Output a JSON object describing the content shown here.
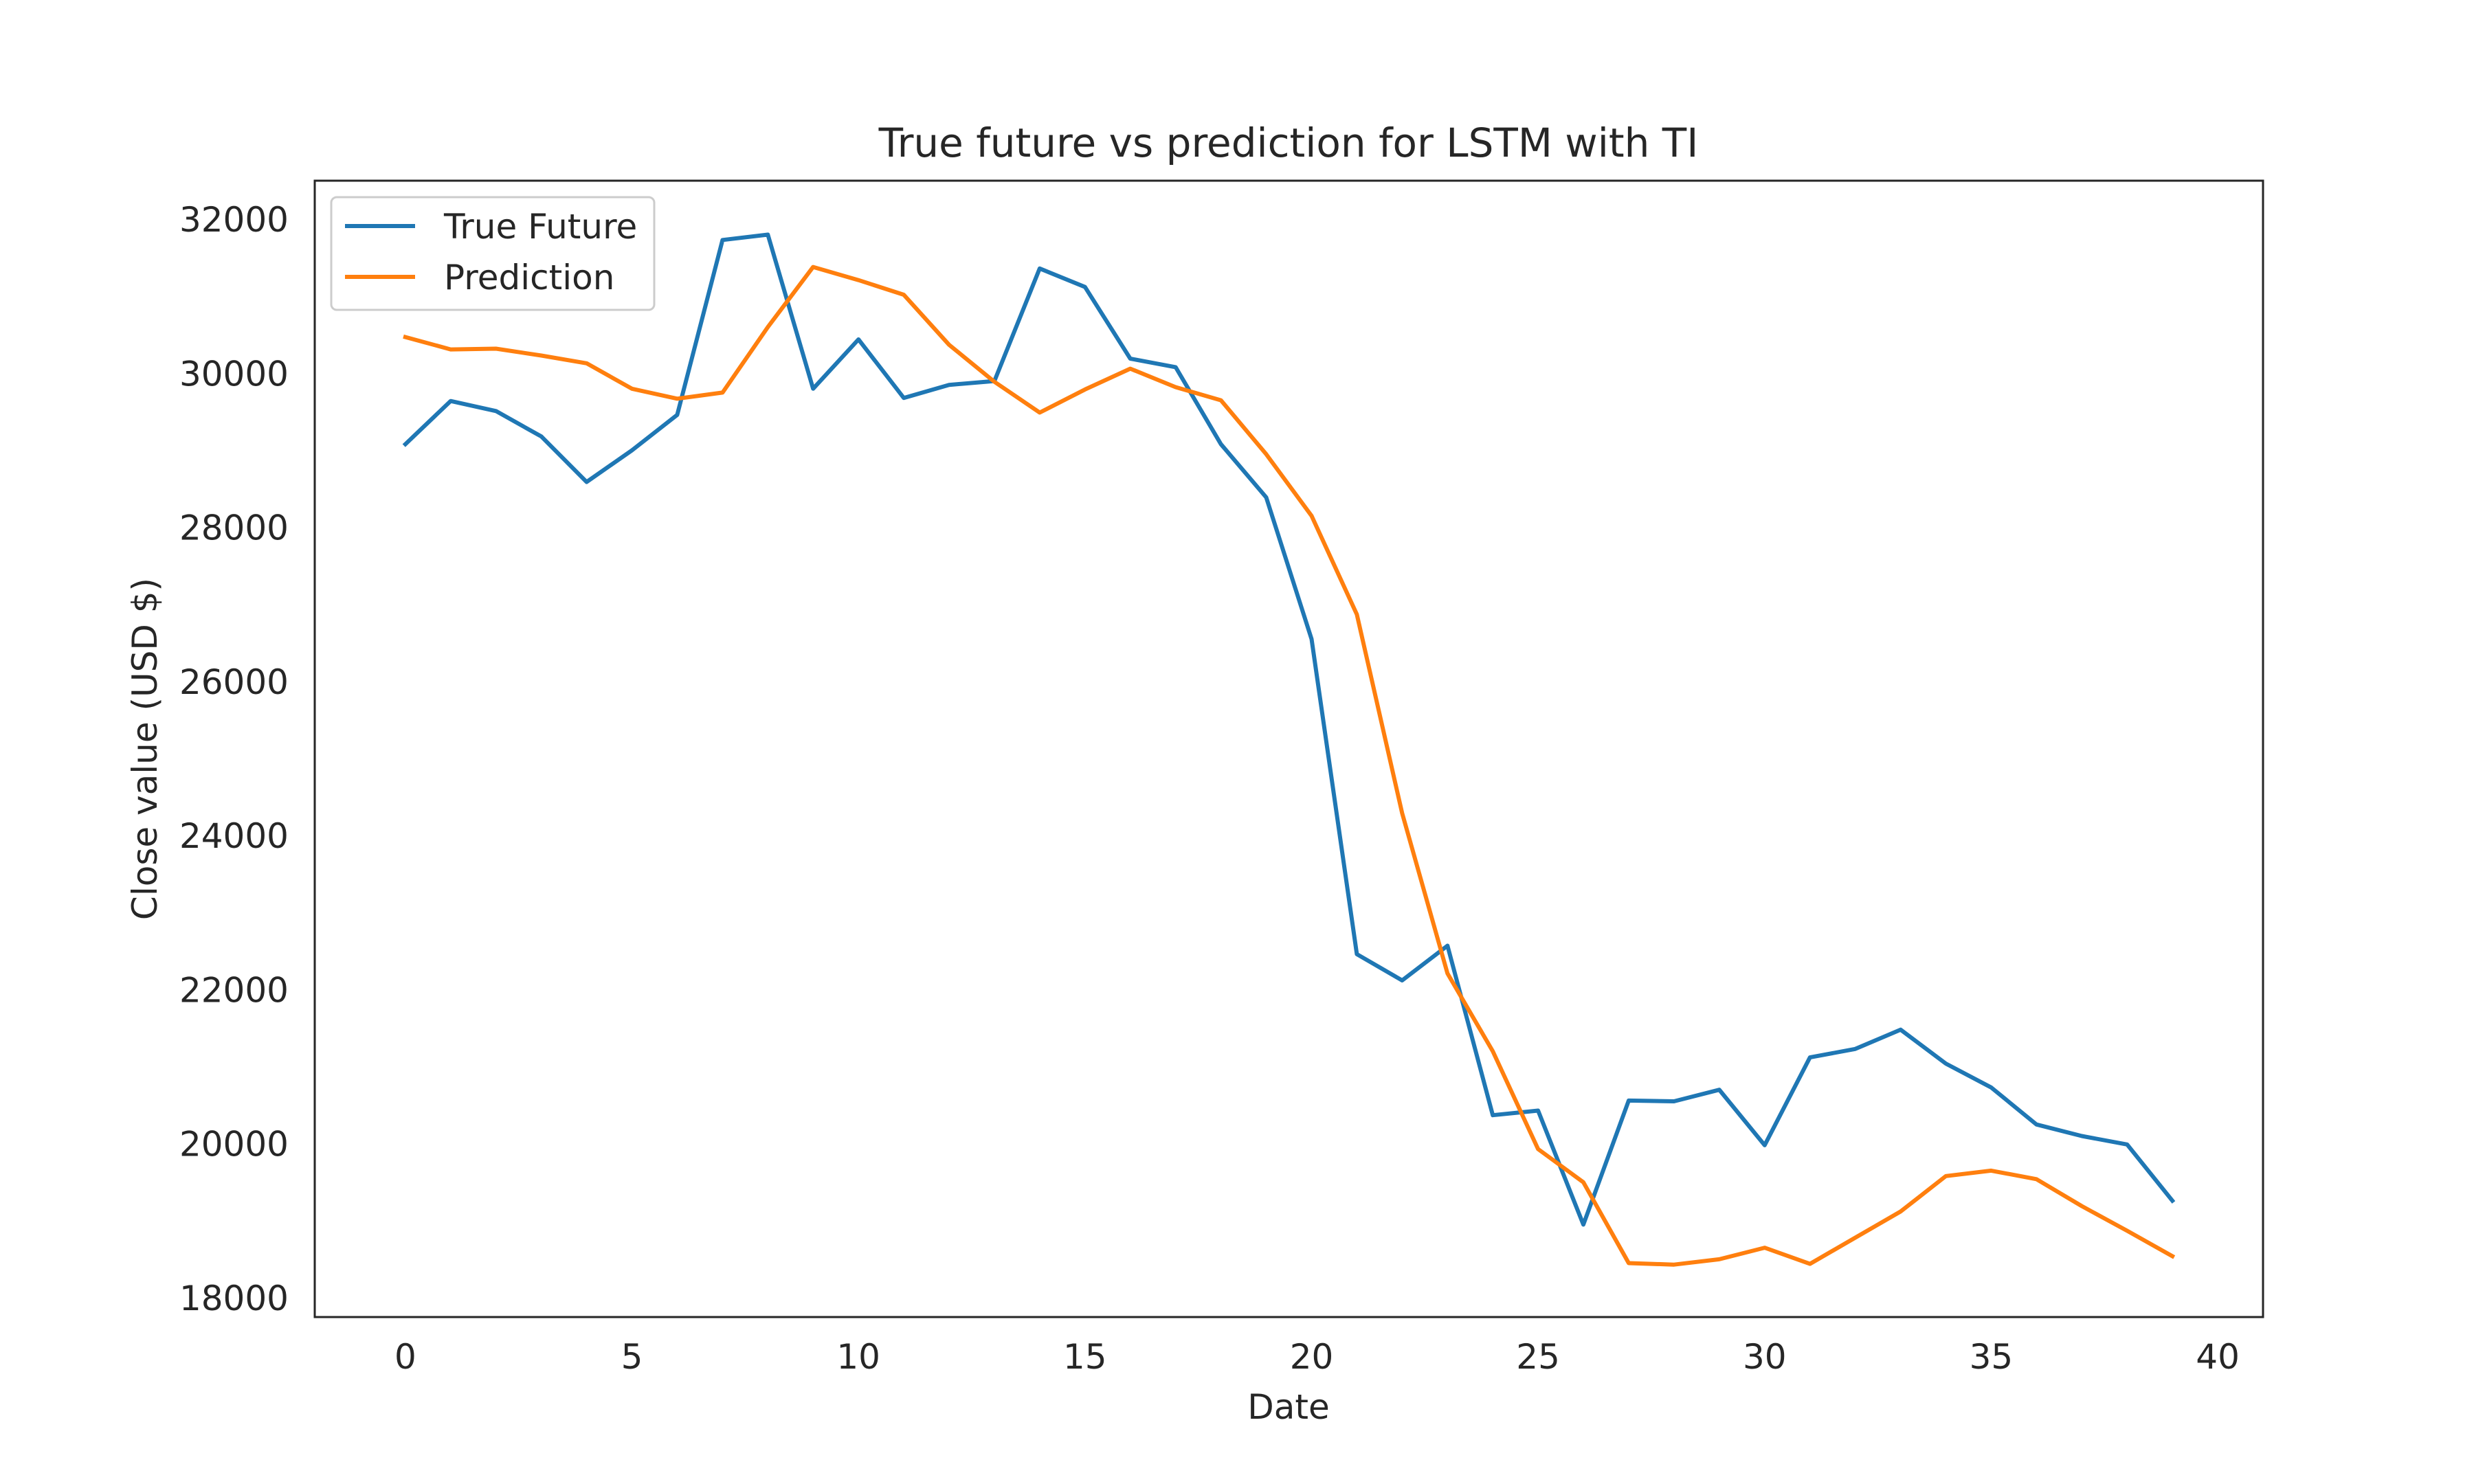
{
  "chart_data": {
    "type": "line",
    "title": "True future vs prediction for LSTM with TI",
    "xlabel": "Date",
    "ylabel": "Close value (USD $)",
    "xlim": [
      -2,
      41
    ],
    "ylim": [
      17750,
      32500
    ],
    "xticks": [
      0,
      5,
      10,
      15,
      20,
      25,
      30,
      35,
      40
    ],
    "yticks": [
      18000,
      20000,
      22000,
      24000,
      26000,
      28000,
      30000,
      32000
    ],
    "grid": false,
    "legend": "top-left",
    "x": [
      0,
      1,
      2,
      3,
      4,
      5,
      6,
      7,
      8,
      9,
      10,
      11,
      12,
      13,
      14,
      15,
      16,
      17,
      18,
      19,
      20,
      21,
      22,
      23,
      24,
      25,
      26,
      27,
      28,
      29,
      30,
      31,
      32,
      33,
      34,
      35,
      36,
      37,
      38,
      39
    ],
    "series": [
      {
        "name": "True Future",
        "color": "#1f77b4",
        "values": [
          29080,
          29640,
          29510,
          29180,
          28590,
          29000,
          29460,
          31730,
          31800,
          29800,
          30440,
          29680,
          29850,
          29900,
          31360,
          31120,
          30190,
          30080,
          29080,
          28390,
          26550,
          22460,
          22120,
          22570,
          20370,
          20430,
          18950,
          20560,
          20550,
          20700,
          19980,
          21120,
          21230,
          21480,
          21040,
          20730,
          20250,
          20100,
          19990,
          19260
        ]
      },
      {
        "name": "Prediction",
        "color": "#ff7f0e",
        "values": [
          30470,
          30310,
          30320,
          30230,
          30130,
          29800,
          29670,
          29750,
          30600,
          31380,
          31210,
          31020,
          30370,
          29890,
          29490,
          29790,
          30060,
          29820,
          29650,
          28950,
          28150,
          26870,
          24290,
          22210,
          21200,
          19930,
          19500,
          18450,
          18430,
          18500,
          18650,
          18440,
          18780,
          19120,
          19580,
          19650,
          19540,
          19190,
          18870,
          18540
        ]
      }
    ]
  }
}
